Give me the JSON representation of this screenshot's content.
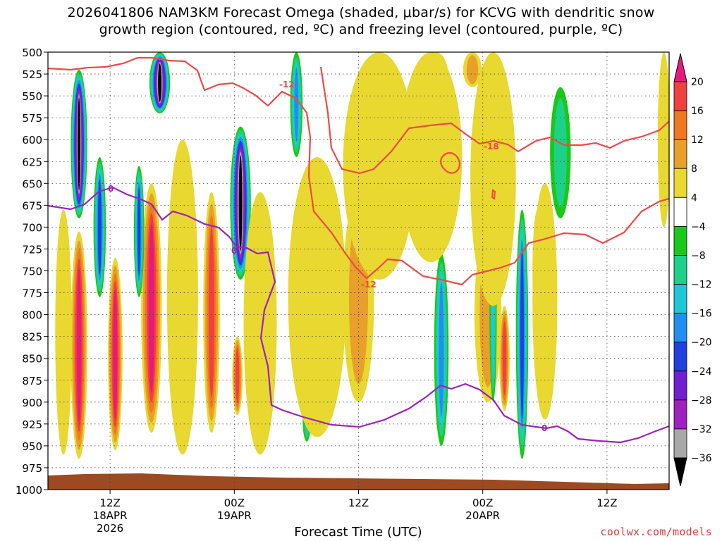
{
  "chart_data": {
    "type": "time-pressure-contour",
    "title_line_1": "2026041806 NAM3KM Forecast Omega (shaded, μbar/s) for KCVG with dendritic snow",
    "title_line_2": "growth region (contoured, red, ºC) and freezing level (contoured, purple, ºC)",
    "xlabel": "Forecast Time (UTC)",
    "credit": "coolwx.com/models",
    "x_range_hours": [
      0,
      60
    ],
    "y_levels": [
      "500",
      "525",
      "550",
      "575",
      "600",
      "625",
      "650",
      "675",
      "700",
      "725",
      "750",
      "775",
      "800",
      "825",
      "850",
      "875",
      "900",
      "925",
      "950",
      "975",
      "1000"
    ],
    "x_ticks": [
      {
        "hour": 6,
        "label": "12Z",
        "sub1": "18APR",
        "sub2": "2026"
      },
      {
        "hour": 18,
        "label": "00Z",
        "sub1": "19APR",
        "sub2": ""
      },
      {
        "hour": 30,
        "label": "12Z",
        "sub1": "",
        "sub2": ""
      },
      {
        "hour": 42,
        "label": "00Z",
        "sub1": "20APR",
        "sub2": ""
      },
      {
        "hour": 54,
        "label": "12Z",
        "sub1": "",
        "sub2": ""
      }
    ],
    "colorbar": {
      "labels": [
        "20",
        "16",
        "12",
        "8",
        "4",
        "−4",
        "−8",
        "−12",
        "−16",
        "−20",
        "−24",
        "−28",
        "−32",
        "−36"
      ],
      "colors": [
        "#e8197c",
        "#f04040",
        "#f07820",
        "#e8a028",
        "#e8d830",
        "#ffffff",
        "#19c919",
        "#1fd08a",
        "#1fc8d8",
        "#2090f0",
        "#2040e0",
        "#7020d0",
        "#a020c0",
        "#a8a8a8",
        "#000000"
      ]
    },
    "contours": {
      "dgz_red": {
        "levels": [
          "-12",
          "-18"
        ],
        "color": "#f04848"
      },
      "freezing_purple": {
        "levels": [
          "0"
        ],
        "color": "#a020c0"
      }
    },
    "omega_cells": [
      {
        "hour": 3.0,
        "p_top": 705,
        "p_bot": 965,
        "w": 0.8,
        "v": 22
      },
      {
        "hour": 6.5,
        "p_top": 735,
        "p_bot": 955,
        "w": 0.7,
        "v": 22
      },
      {
        "hour": 10.0,
        "p_top": 650,
        "p_bot": 935,
        "w": 1.0,
        "v": 22
      },
      {
        "hour": 15.8,
        "p_top": 660,
        "p_bot": 935,
        "w": 0.8,
        "v": 16
      },
      {
        "hour": 18.3,
        "p_top": 825,
        "p_bot": 915,
        "w": 0.5,
        "v": 18
      },
      {
        "hour": 44.1,
        "p_top": 790,
        "p_bot": 910,
        "w": 0.5,
        "v": 16
      },
      {
        "hour": 47.3,
        "p_top": 680,
        "p_bot": 820,
        "w": 0.5,
        "v": 14
      },
      {
        "hour": 32.0,
        "p_top": 500,
        "p_bot": 580,
        "w": 1.2,
        "v": 14
      },
      {
        "hour": 37.5,
        "p_top": 500,
        "p_bot": 560,
        "w": 1.2,
        "v": 8
      },
      {
        "hour": 41.0,
        "p_top": 500,
        "p_bot": 540,
        "w": 0.9,
        "v": 10
      },
      {
        "hour": 30.0,
        "p_top": 660,
        "p_bot": 900,
        "w": 1.5,
        "v": 8
      },
      {
        "hour": 42.5,
        "p_top": 700,
        "p_bot": 900,
        "w": 1.3,
        "v": 10
      },
      {
        "hour": 3.0,
        "p_top": 520,
        "p_bot": 690,
        "w": 0.8,
        "v": -36
      },
      {
        "hour": 10.8,
        "p_top": 500,
        "p_bot": 570,
        "w": 1.0,
        "v": -36
      },
      {
        "hour": 18.6,
        "p_top": 585,
        "p_bot": 760,
        "w": 1.0,
        "v": -36
      },
      {
        "hour": 5.0,
        "p_top": 620,
        "p_bot": 780,
        "w": 0.6,
        "v": -20
      },
      {
        "hour": 8.8,
        "p_top": 630,
        "p_bot": 780,
        "w": 0.5,
        "v": -20
      },
      {
        "hour": 24.0,
        "p_top": 500,
        "p_bot": 620,
        "w": 0.6,
        "v": -18
      },
      {
        "hour": 38.0,
        "p_top": 730,
        "p_bot": 950,
        "w": 0.7,
        "v": -16
      },
      {
        "hour": 45.8,
        "p_top": 680,
        "p_bot": 965,
        "w": 0.6,
        "v": -22
      },
      {
        "hour": 43.0,
        "p_top": 700,
        "p_bot": 900,
        "w": 0.35,
        "v": -12
      },
      {
        "hour": 49.5,
        "p_top": 540,
        "p_bot": 690,
        "w": 1.0,
        "v": -8
      },
      {
        "hour": 25.0,
        "p_top": 895,
        "p_bot": 945,
        "w": 0.4,
        "v": -8
      },
      {
        "hour": 1.5,
        "p_top": 680,
        "p_bot": 960,
        "w": 0.8,
        "v": 6
      },
      {
        "hour": 13.0,
        "p_top": 600,
        "p_bot": 960,
        "w": 1.5,
        "v": 6
      },
      {
        "hour": 20.5,
        "p_top": 660,
        "p_bot": 960,
        "w": 1.6,
        "v": 6
      },
      {
        "hour": 26.0,
        "p_top": 620,
        "p_bot": 940,
        "w": 2.8,
        "v": 5
      },
      {
        "hour": 32.0,
        "p_top": 500,
        "p_bot": 760,
        "w": 3.5,
        "v": 5
      },
      {
        "hour": 37.0,
        "p_top": 500,
        "p_bot": 740,
        "w": 3.0,
        "v": 5
      },
      {
        "hour": 43.0,
        "p_top": 500,
        "p_bot": 790,
        "w": 2.2,
        "v": 5
      },
      {
        "hour": 48.0,
        "p_top": 650,
        "p_bot": 920,
        "w": 1.2,
        "v": 5
      },
      {
        "hour": 59.5,
        "p_top": 500,
        "p_bot": 700,
        "w": 0.6,
        "v": 5
      }
    ]
  }
}
